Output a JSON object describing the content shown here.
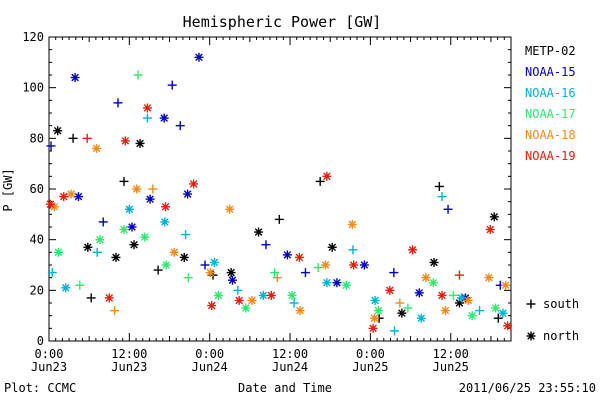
{
  "chart_data": {
    "type": "scatter",
    "title": "Hemispheric Power [GW]",
    "ylabel": "P [GW]",
    "xlabel": "Date and Time",
    "footer_left": "Plot: CCMC",
    "footer_right": "2011/06/25 23:55:10",
    "xlim_hours": [
      0,
      69
    ],
    "ylim": [
      0,
      120
    ],
    "yticks": [
      0,
      20,
      40,
      60,
      80,
      100,
      120
    ],
    "xticks": [
      {
        "hour": 0,
        "time": "0:00",
        "date": "Jun23"
      },
      {
        "hour": 12,
        "time": "12:00",
        "date": "Jun23"
      },
      {
        "hour": 24,
        "time": "0:00",
        "date": "Jun24"
      },
      {
        "hour": 36,
        "time": "12:00",
        "date": "Jun24"
      },
      {
        "hour": 48,
        "time": "0:00",
        "date": "Jun25"
      },
      {
        "hour": 60,
        "time": "12:00",
        "date": "Jun25"
      }
    ],
    "grid": false,
    "legend_position": "right",
    "marker_legend": [
      {
        "marker": "+",
        "label": "south"
      },
      {
        "marker": "*",
        "label": "north"
      }
    ],
    "series": [
      {
        "name": "METP-02",
        "color": "#000000",
        "points": [
          [
            1.3,
            83,
            "*"
          ],
          [
            3.6,
            80,
            "+"
          ],
          [
            5.8,
            37,
            "*"
          ],
          [
            6.3,
            17,
            "+"
          ],
          [
            10.0,
            33,
            "*"
          ],
          [
            11.2,
            63,
            "+"
          ],
          [
            12.7,
            38,
            "*"
          ],
          [
            13.6,
            78,
            "*"
          ],
          [
            16.3,
            28,
            "+"
          ],
          [
            20.2,
            33,
            "*"
          ],
          [
            24.5,
            26,
            "+"
          ],
          [
            27.2,
            27,
            "*"
          ],
          [
            31.3,
            43,
            "*"
          ],
          [
            34.4,
            48,
            "+"
          ],
          [
            40.5,
            63,
            "+"
          ],
          [
            42.3,
            37,
            "*"
          ],
          [
            49.3,
            9,
            "+"
          ],
          [
            52.7,
            11,
            "*"
          ],
          [
            57.5,
            31,
            "*"
          ],
          [
            58.3,
            61,
            "+"
          ],
          [
            61.3,
            15,
            "*"
          ],
          [
            66.5,
            49,
            "*"
          ],
          [
            67.1,
            9,
            "+"
          ]
        ]
      },
      {
        "name": "NOAA-15",
        "color": "#0000c0",
        "points": [
          [
            0.3,
            77,
            "+"
          ],
          [
            3.9,
            104,
            "*"
          ],
          [
            4.4,
            57,
            "*"
          ],
          [
            8.1,
            47,
            "+"
          ],
          [
            10.3,
            94,
            "+"
          ],
          [
            12.4,
            45,
            "*"
          ],
          [
            15.1,
            56,
            "*"
          ],
          [
            17.2,
            88,
            "*"
          ],
          [
            18.4,
            101,
            "+"
          ],
          [
            19.6,
            85,
            "+"
          ],
          [
            20.7,
            58,
            "*"
          ],
          [
            22.4,
            112,
            "*"
          ],
          [
            23.3,
            30,
            "+"
          ],
          [
            27.4,
            24,
            "*"
          ],
          [
            32.4,
            38,
            "+"
          ],
          [
            35.6,
            34,
            "*"
          ],
          [
            38.3,
            27,
            "+"
          ],
          [
            43.0,
            23,
            "*"
          ],
          [
            47.1,
            30,
            "*"
          ],
          [
            51.5,
            27,
            "+"
          ],
          [
            55.3,
            19,
            "*"
          ],
          [
            59.6,
            52,
            "+"
          ],
          [
            62.2,
            17,
            "*"
          ],
          [
            67.4,
            22,
            "+"
          ]
        ]
      },
      {
        "name": "NOAA-16",
        "color": "#00b0d8",
        "points": [
          [
            0.5,
            27,
            "+"
          ],
          [
            2.5,
            21,
            "*"
          ],
          [
            7.2,
            35,
            "+"
          ],
          [
            12.0,
            52,
            "*"
          ],
          [
            14.7,
            88,
            "+"
          ],
          [
            17.3,
            47,
            "*"
          ],
          [
            20.4,
            42,
            "+"
          ],
          [
            24.7,
            31,
            "*"
          ],
          [
            28.2,
            20,
            "+"
          ],
          [
            32.0,
            18,
            "*"
          ],
          [
            36.6,
            15,
            "+"
          ],
          [
            41.5,
            23,
            "*"
          ],
          [
            45.4,
            36,
            "+"
          ],
          [
            48.7,
            16,
            "*"
          ],
          [
            51.6,
            4,
            "+"
          ],
          [
            55.6,
            9,
            "*"
          ],
          [
            58.7,
            57,
            "+"
          ],
          [
            61.6,
            17,
            "*"
          ],
          [
            64.3,
            12,
            "+"
          ],
          [
            67.8,
            11,
            "*"
          ]
        ]
      },
      {
        "name": "NOAA-17",
        "color": "#30e870",
        "points": [
          [
            1.4,
            35,
            "*"
          ],
          [
            4.6,
            22,
            "+"
          ],
          [
            7.6,
            40,
            "*"
          ],
          [
            11.2,
            44,
            "*"
          ],
          [
            13.3,
            105,
            "+"
          ],
          [
            14.3,
            41,
            "*"
          ],
          [
            17.5,
            30,
            "*"
          ],
          [
            20.8,
            25,
            "+"
          ],
          [
            25.3,
            18,
            "*"
          ],
          [
            29.4,
            13,
            "*"
          ],
          [
            33.7,
            27,
            "+"
          ],
          [
            36.3,
            18,
            "*"
          ],
          [
            40.2,
            29,
            "+"
          ],
          [
            44.4,
            22,
            "*"
          ],
          [
            49.2,
            12,
            "*"
          ],
          [
            53.6,
            13,
            "+"
          ],
          [
            57.4,
            23,
            "*"
          ],
          [
            60.4,
            18,
            "+"
          ],
          [
            63.2,
            10,
            "*"
          ],
          [
            66.7,
            13,
            "*"
          ]
        ]
      },
      {
        "name": "NOAA-18",
        "color": "#f08c1c",
        "points": [
          [
            0.8,
            53,
            "*"
          ],
          [
            3.3,
            58,
            "*"
          ],
          [
            7.1,
            76,
            "*"
          ],
          [
            9.8,
            12,
            "+"
          ],
          [
            13.1,
            60,
            "*"
          ],
          [
            15.5,
            60,
            "+"
          ],
          [
            18.7,
            35,
            "*"
          ],
          [
            24.1,
            27,
            "*"
          ],
          [
            27.0,
            52,
            "*"
          ],
          [
            30.3,
            16,
            "*"
          ],
          [
            34.1,
            25,
            "+"
          ],
          [
            37.5,
            12,
            "*"
          ],
          [
            41.3,
            30,
            "*"
          ],
          [
            45.3,
            46,
            "*"
          ],
          [
            48.6,
            9,
            "*"
          ],
          [
            52.4,
            15,
            "+"
          ],
          [
            56.3,
            25,
            "*"
          ],
          [
            59.2,
            12,
            "*"
          ],
          [
            62.6,
            16,
            "*"
          ],
          [
            65.7,
            25,
            "*"
          ],
          [
            68.2,
            22,
            "*"
          ]
        ]
      },
      {
        "name": "NOAA-19",
        "color": "#e02010",
        "points": [
          [
            0.2,
            54,
            "*"
          ],
          [
            2.2,
            57,
            "*"
          ],
          [
            5.7,
            80,
            "+"
          ],
          [
            9.0,
            17,
            "*"
          ],
          [
            11.4,
            79,
            "*"
          ],
          [
            14.7,
            92,
            "*"
          ],
          [
            17.4,
            53,
            "*"
          ],
          [
            21.6,
            62,
            "*"
          ],
          [
            24.3,
            14,
            "*"
          ],
          [
            28.4,
            16,
            "*"
          ],
          [
            33.2,
            18,
            "*"
          ],
          [
            37.4,
            33,
            "*"
          ],
          [
            41.5,
            65,
            "*"
          ],
          [
            45.5,
            30,
            "*"
          ],
          [
            48.4,
            5,
            "*"
          ],
          [
            50.9,
            20,
            "*"
          ],
          [
            54.3,
            36,
            "*"
          ],
          [
            58.7,
            18,
            "*"
          ],
          [
            61.3,
            26,
            "+"
          ],
          [
            65.9,
            44,
            "*"
          ],
          [
            68.5,
            6,
            "*"
          ]
        ]
      }
    ]
  }
}
